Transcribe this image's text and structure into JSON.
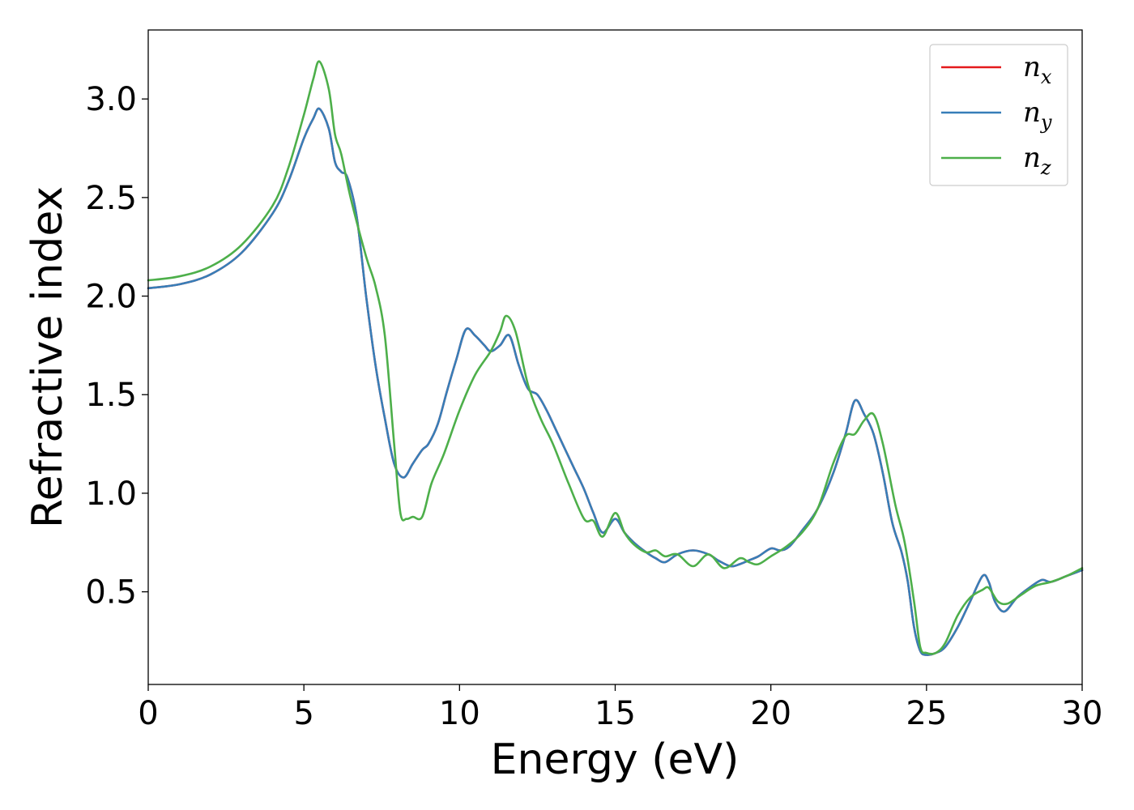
{
  "chart_data": {
    "type": "line",
    "xlabel": "Energy (eV)",
    "ylabel": "Refractive index",
    "xlim": [
      0,
      30
    ],
    "ylim": [
      0.03,
      3.35
    ],
    "xticks": [
      "0",
      "5",
      "10",
      "15",
      "20",
      "25",
      "30"
    ],
    "yticks": [
      "0.5",
      "1.0",
      "1.5",
      "2.0",
      "2.5",
      "3.0"
    ],
    "grid": false,
    "legend_position": "top-right",
    "series": [
      {
        "name": "n_x",
        "legend_base": "n",
        "legend_sub": "x",
        "color": "#e41a1c",
        "x": [
          0,
          1,
          2,
          3,
          4,
          4.5,
          5,
          5.3,
          5.5,
          5.8,
          6.0,
          6.2,
          6.4,
          6.7,
          7.0,
          7.3,
          7.6,
          7.9,
          8.2,
          8.5,
          8.8,
          9.0,
          9.3,
          9.6,
          9.9,
          10.2,
          10.5,
          10.8,
          11.0,
          11.3,
          11.6,
          11.9,
          12.2,
          12.5,
          12.8,
          13.1,
          13.4,
          13.7,
          14.0,
          14.3,
          14.6,
          15.0,
          15.3,
          15.6,
          16.0,
          16.3,
          16.6,
          17.0,
          17.5,
          18.0,
          18.3,
          18.7,
          19.0,
          19.3,
          19.6,
          20.0,
          20.3,
          20.6,
          21.0,
          21.5,
          22.0,
          22.4,
          22.7,
          23.0,
          23.3,
          23.6,
          23.9,
          24.2,
          24.4,
          24.6,
          24.8,
          25.0,
          25.3,
          25.6,
          26.0,
          26.4,
          26.8,
          27.0,
          27.2,
          27.5,
          27.9,
          28.3,
          28.7,
          29.0,
          29.5,
          30.0
        ],
        "values": [
          2.04,
          2.06,
          2.11,
          2.22,
          2.42,
          2.58,
          2.8,
          2.9,
          2.95,
          2.85,
          2.68,
          2.63,
          2.6,
          2.4,
          2.0,
          1.65,
          1.38,
          1.15,
          1.08,
          1.15,
          1.22,
          1.25,
          1.35,
          1.52,
          1.68,
          1.83,
          1.8,
          1.75,
          1.72,
          1.75,
          1.8,
          1.65,
          1.53,
          1.5,
          1.42,
          1.32,
          1.22,
          1.12,
          1.02,
          0.9,
          0.8,
          0.87,
          0.8,
          0.75,
          0.7,
          0.67,
          0.65,
          0.69,
          0.71,
          0.69,
          0.66,
          0.63,
          0.64,
          0.66,
          0.68,
          0.72,
          0.71,
          0.73,
          0.81,
          0.92,
          1.1,
          1.3,
          1.47,
          1.4,
          1.3,
          1.1,
          0.85,
          0.7,
          0.55,
          0.32,
          0.2,
          0.18,
          0.19,
          0.22,
          0.32,
          0.45,
          0.58,
          0.55,
          0.45,
          0.4,
          0.47,
          0.52,
          0.56,
          0.55,
          0.58,
          0.61
        ]
      },
      {
        "name": "n_y",
        "legend_base": "n",
        "legend_sub": "y",
        "color": "#377eb8",
        "x": [
          0,
          1,
          2,
          3,
          4,
          4.5,
          5,
          5.3,
          5.5,
          5.8,
          6.0,
          6.2,
          6.4,
          6.7,
          7.0,
          7.3,
          7.6,
          7.9,
          8.2,
          8.5,
          8.8,
          9.0,
          9.3,
          9.6,
          9.9,
          10.2,
          10.5,
          10.8,
          11.0,
          11.3,
          11.6,
          11.9,
          12.2,
          12.5,
          12.8,
          13.1,
          13.4,
          13.7,
          14.0,
          14.3,
          14.6,
          15.0,
          15.3,
          15.6,
          16.0,
          16.3,
          16.6,
          17.0,
          17.5,
          18.0,
          18.3,
          18.7,
          19.0,
          19.3,
          19.6,
          20.0,
          20.3,
          20.6,
          21.0,
          21.5,
          22.0,
          22.4,
          22.7,
          23.0,
          23.3,
          23.6,
          23.9,
          24.2,
          24.4,
          24.6,
          24.8,
          25.0,
          25.3,
          25.6,
          26.0,
          26.4,
          26.8,
          27.0,
          27.2,
          27.5,
          27.9,
          28.3,
          28.7,
          29.0,
          29.5,
          30.0
        ],
        "values": [
          2.04,
          2.06,
          2.11,
          2.22,
          2.42,
          2.58,
          2.8,
          2.9,
          2.95,
          2.85,
          2.68,
          2.63,
          2.6,
          2.4,
          2.0,
          1.65,
          1.38,
          1.15,
          1.08,
          1.15,
          1.22,
          1.25,
          1.35,
          1.52,
          1.68,
          1.83,
          1.8,
          1.75,
          1.72,
          1.75,
          1.8,
          1.65,
          1.53,
          1.5,
          1.42,
          1.32,
          1.22,
          1.12,
          1.02,
          0.9,
          0.8,
          0.87,
          0.8,
          0.75,
          0.7,
          0.67,
          0.65,
          0.69,
          0.71,
          0.69,
          0.66,
          0.63,
          0.64,
          0.66,
          0.68,
          0.72,
          0.71,
          0.73,
          0.81,
          0.92,
          1.1,
          1.3,
          1.47,
          1.4,
          1.3,
          1.1,
          0.85,
          0.7,
          0.55,
          0.32,
          0.2,
          0.18,
          0.19,
          0.22,
          0.32,
          0.45,
          0.58,
          0.55,
          0.45,
          0.4,
          0.47,
          0.52,
          0.56,
          0.55,
          0.58,
          0.61
        ]
      },
      {
        "name": "n_z",
        "legend_base": "n",
        "legend_sub": "z",
        "color": "#4daf4a",
        "x": [
          0,
          1,
          2,
          3,
          4,
          4.5,
          5,
          5.3,
          5.5,
          5.8,
          6.0,
          6.2,
          6.5,
          7.0,
          7.3,
          7.6,
          7.9,
          8.1,
          8.3,
          8.5,
          8.8,
          9.1,
          9.5,
          10.0,
          10.5,
          11.0,
          11.3,
          11.5,
          11.8,
          12.2,
          12.6,
          13.0,
          13.5,
          14.0,
          14.3,
          14.6,
          15.0,
          15.3,
          15.6,
          16.0,
          16.3,
          16.6,
          17.0,
          17.5,
          18.0,
          18.5,
          19.0,
          19.3,
          19.6,
          20.0,
          20.5,
          21.0,
          21.5,
          22.0,
          22.4,
          22.7,
          23.0,
          23.3,
          23.6,
          24.0,
          24.3,
          24.6,
          24.8,
          25.0,
          25.3,
          25.6,
          26.0,
          26.4,
          26.8,
          27.0,
          27.3,
          27.6,
          28.0,
          28.5,
          29.0,
          29.5,
          30.0
        ],
        "values": [
          2.08,
          2.1,
          2.15,
          2.26,
          2.46,
          2.65,
          2.92,
          3.1,
          3.19,
          3.05,
          2.82,
          2.72,
          2.5,
          2.2,
          2.05,
          1.8,
          1.25,
          0.9,
          0.87,
          0.88,
          0.88,
          1.05,
          1.2,
          1.42,
          1.6,
          1.72,
          1.82,
          1.9,
          1.82,
          1.55,
          1.38,
          1.25,
          1.05,
          0.87,
          0.86,
          0.78,
          0.9,
          0.8,
          0.74,
          0.7,
          0.71,
          0.68,
          0.69,
          0.63,
          0.69,
          0.62,
          0.67,
          0.65,
          0.64,
          0.68,
          0.73,
          0.8,
          0.92,
          1.15,
          1.29,
          1.3,
          1.37,
          1.4,
          1.25,
          0.94,
          0.75,
          0.45,
          0.22,
          0.19,
          0.19,
          0.24,
          0.38,
          0.47,
          0.51,
          0.52,
          0.45,
          0.44,
          0.48,
          0.53,
          0.55,
          0.58,
          0.62
        ]
      }
    ]
  }
}
